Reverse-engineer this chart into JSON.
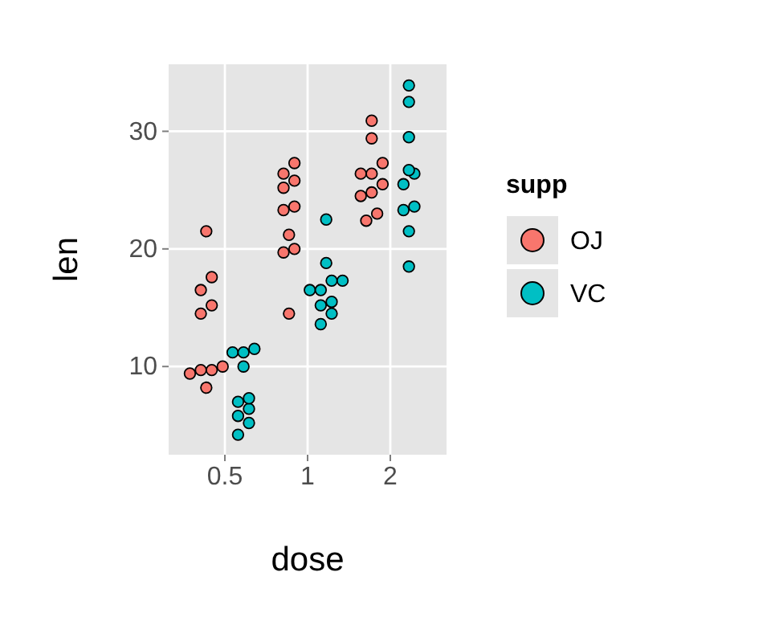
{
  "chart_data": {
    "type": "scatter",
    "xlabel": "dose",
    "ylabel": "len",
    "legend_title": "supp",
    "categories": [
      "0.5",
      "1",
      "2"
    ],
    "ylim": [
      2.5,
      35.7
    ],
    "yticks": [
      10,
      20,
      30
    ],
    "grid": true,
    "legend": "right",
    "marker": "circle",
    "series": [
      {
        "name": "OJ",
        "color": "#f8766d",
        "x": [
          "0.5",
          "0.5",
          "0.5",
          "0.5",
          "0.5",
          "0.5",
          "0.5",
          "0.5",
          "0.5",
          "0.5",
          "1",
          "1",
          "1",
          "1",
          "1",
          "1",
          "1",
          "1",
          "1",
          "1",
          "2",
          "2",
          "2",
          "2",
          "2",
          "2",
          "2",
          "2",
          "2",
          "2"
        ],
        "values": [
          15.2,
          21.5,
          17.6,
          9.7,
          14.5,
          10,
          8.2,
          9.4,
          16.5,
          9.7,
          19.7,
          23.3,
          23.6,
          26.4,
          20,
          25.2,
          25.8,
          21.2,
          14.5,
          27.3,
          25.5,
          26.4,
          22.4,
          24.5,
          24.8,
          30.9,
          26.4,
          27.3,
          29.4,
          23
        ]
      },
      {
        "name": "VC",
        "color": "#00bfc4",
        "x": [
          "0.5",
          "0.5",
          "0.5",
          "0.5",
          "0.5",
          "0.5",
          "0.5",
          "0.5",
          "0.5",
          "0.5",
          "1",
          "1",
          "1",
          "1",
          "1",
          "1",
          "1",
          "1",
          "1",
          "1",
          "2",
          "2",
          "2",
          "2",
          "2",
          "2",
          "2",
          "2",
          "2",
          "2"
        ],
        "values": [
          4.2,
          11.5,
          7.3,
          5.8,
          6.4,
          10,
          11.2,
          11.2,
          5.2,
          7,
          16.5,
          16.5,
          15.2,
          17.3,
          22.5,
          17.3,
          13.6,
          14.5,
          18.8,
          15.5,
          23.6,
          18.5,
          33.9,
          25.5,
          26.4,
          32.5,
          26.7,
          21.5,
          23.3,
          29.5
        ]
      }
    ]
  }
}
